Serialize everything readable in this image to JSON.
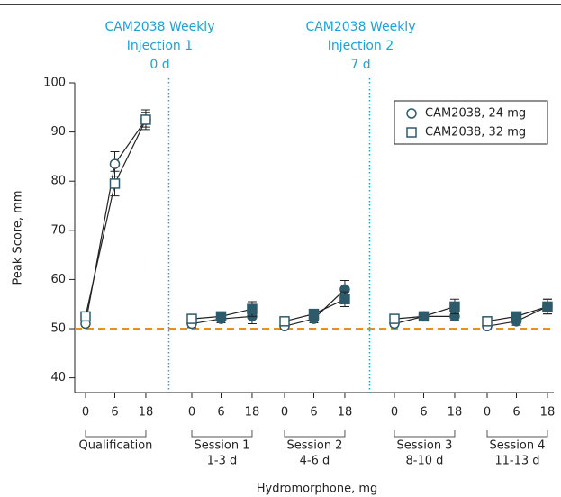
{
  "chart_data": {
    "type": "line",
    "y_label": "Peak Score, mm",
    "x_label": "Hydromorphone, mg",
    "groups": [
      {
        "label": [
          "Qualification"
        ],
        "categories": [
          "0",
          "6",
          "18"
        ]
      },
      {
        "label": [
          "Session 1",
          "1-3 d"
        ],
        "categories": [
          "0",
          "6",
          "18"
        ]
      },
      {
        "label": [
          "Session 2",
          "4-6 d"
        ],
        "categories": [
          "0",
          "6",
          "18"
        ]
      },
      {
        "label": [
          "Session 3",
          "8-10 d"
        ],
        "categories": [
          "0",
          "6",
          "18"
        ]
      },
      {
        "label": [
          "Session 4",
          "11-13 d"
        ],
        "categories": [
          "0",
          "6",
          "18"
        ]
      }
    ],
    "series": [
      {
        "name": "CAM2038, 24 mg",
        "marker": "circle",
        "color": "#2d5b6b",
        "values": [
          51,
          83.5,
          92.5,
          51,
          52,
          52.5,
          50.5,
          52,
          58,
          51,
          52.5,
          52.5,
          50.5,
          51.5,
          54.5
        ],
        "errors": [
          0.5,
          2.5,
          1.5,
          0.8,
          0.8,
          1.5,
          0.5,
          0.8,
          1.8,
          0.5,
          0.8,
          0.8,
          0.5,
          0.8,
          1.5
        ],
        "filled": [
          false,
          false,
          false,
          false,
          true,
          true,
          false,
          true,
          true,
          false,
          true,
          true,
          false,
          true,
          true
        ]
      },
      {
        "name": "CAM2038, 32 mg",
        "marker": "square",
        "color": "#2d5b6b",
        "values": [
          52.5,
          79.5,
          92.5,
          52,
          52.5,
          54,
          51.5,
          53,
          56,
          52,
          52.5,
          54.5,
          51.5,
          52.5,
          54.5
        ],
        "errors": [
          0.8,
          2.5,
          2,
          0.8,
          0.8,
          1.5,
          0.8,
          0.8,
          1.5,
          0.8,
          0.8,
          1.5,
          0.5,
          0.8,
          1.5
        ],
        "filled": [
          false,
          false,
          false,
          false,
          true,
          true,
          false,
          true,
          true,
          false,
          true,
          true,
          false,
          true,
          true
        ]
      }
    ],
    "ylim": [
      37,
      100
    ],
    "yticks": [
      40,
      50,
      60,
      70,
      80,
      90,
      100
    ],
    "reference_line": {
      "value": 50,
      "color": "#e8901a"
    },
    "annotations": [
      {
        "lines": [
          "CAM2038 Weekly",
          "Injection 1",
          "0 d"
        ],
        "after_group": 0,
        "color": "#1aa3d9"
      },
      {
        "lines": [
          "CAM2038 Weekly",
          "Injection 2",
          "7 d"
        ],
        "after_group": 2,
        "color": "#1aa3d9"
      }
    ],
    "legend": "upper right"
  }
}
